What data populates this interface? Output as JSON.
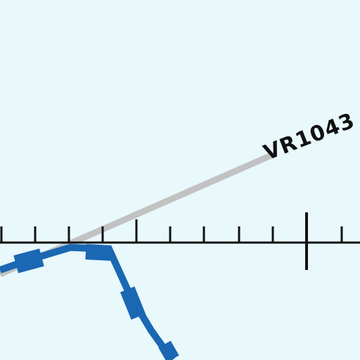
{
  "chart": {
    "background_color": "#e8f8fb",
    "route": {
      "label": "VR1043",
      "color": "#c2c2c2"
    },
    "boundary": {
      "color": "#1a67b3"
    },
    "scale_line": {
      "color": "#111111"
    }
  }
}
